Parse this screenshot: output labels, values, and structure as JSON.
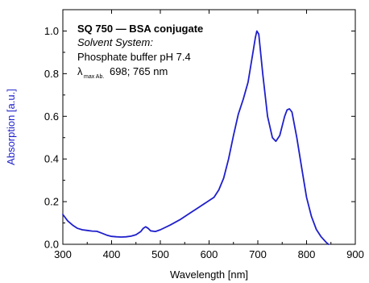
{
  "chart_data": {
    "type": "line",
    "xlabel": "Wavelength [nm]",
    "ylabel": "Absorption [a.u.]",
    "xlim": [
      300,
      900
    ],
    "ylim": [
      0,
      1.1
    ],
    "x_ticks": [
      300,
      400,
      500,
      600,
      700,
      800,
      900
    ],
    "y_ticks": [
      0.0,
      0.2,
      0.4,
      0.6,
      0.8,
      1.0
    ],
    "x_tick_labels": [
      "300",
      "400",
      "500",
      "600",
      "700",
      "800",
      "900"
    ],
    "y_tick_labels": [
      "0.0",
      "0.2",
      "0.4",
      "0.6",
      "0.8",
      "1.0"
    ],
    "annotation": {
      "title": "SQ 750 — BSA conjugate",
      "line2": "Solvent System:",
      "line3": "Phosphate buffer pH 7.4",
      "lambda_symbol": "λ",
      "lambda_subscript": "max Ab.",
      "lambda_values": "698; 765 nm"
    },
    "series": [
      {
        "color": "#1f1fcc",
        "x": [
          300,
          310,
          320,
          330,
          340,
          350,
          360,
          370,
          380,
          390,
          400,
          410,
          420,
          430,
          440,
          450,
          460,
          465,
          470,
          475,
          480,
          490,
          500,
          520,
          540,
          560,
          580,
          600,
          610,
          620,
          630,
          640,
          650,
          660,
          670,
          680,
          690,
          695,
          698,
          702,
          710,
          720,
          730,
          737,
          745,
          755,
          760,
          765,
          770,
          780,
          790,
          800,
          810,
          820,
          830,
          840,
          845
        ],
        "y": [
          0.14,
          0.11,
          0.09,
          0.075,
          0.068,
          0.065,
          0.062,
          0.061,
          0.052,
          0.043,
          0.037,
          0.035,
          0.034,
          0.035,
          0.038,
          0.045,
          0.06,
          0.075,
          0.082,
          0.075,
          0.063,
          0.06,
          0.068,
          0.09,
          0.115,
          0.145,
          0.175,
          0.205,
          0.22,
          0.255,
          0.31,
          0.4,
          0.51,
          0.61,
          0.68,
          0.76,
          0.9,
          0.97,
          1.0,
          0.985,
          0.8,
          0.6,
          0.5,
          0.483,
          0.51,
          0.6,
          0.63,
          0.635,
          0.62,
          0.5,
          0.36,
          0.22,
          0.13,
          0.07,
          0.035,
          0.01,
          0.0
        ]
      }
    ]
  }
}
